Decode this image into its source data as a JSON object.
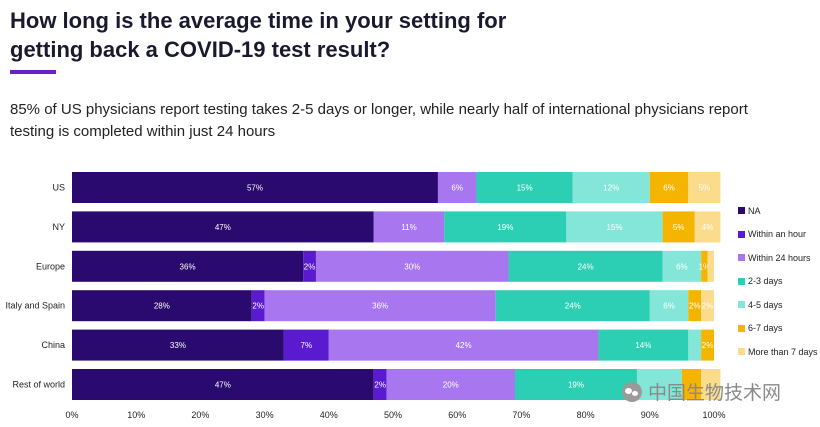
{
  "header": {
    "title": "How long is the average time in your setting for getting back a COVID-19 test result?",
    "subtitle": "85% of US physicians report testing takes 2-5 days or longer, while nearly half of international physicians report testing is completed within just 24 hours"
  },
  "chart_data": {
    "type": "bar",
    "orientation": "horizontal",
    "stacked": true,
    "categories": [
      "US",
      "NY",
      "Europe",
      "Italy and Spain",
      "China",
      "Rest of world"
    ],
    "series": [
      {
        "name": "NA",
        "color": "#2a0a6e",
        "values": [
          57,
          47,
          36,
          28,
          33,
          47
        ]
      },
      {
        "name": "Within an hour",
        "color": "#5a1ad0",
        "values": [
          0,
          0,
          2,
          2,
          7,
          2
        ]
      },
      {
        "name": "Within 24 hours",
        "color": "#a876ee",
        "values": [
          6,
          11,
          30,
          36,
          42,
          20
        ]
      },
      {
        "name": "2-3 days",
        "color": "#2ccfb3",
        "values": [
          15,
          19,
          24,
          24,
          14,
          19
        ]
      },
      {
        "name": "4-5 days",
        "color": "#84e6d8",
        "values": [
          12,
          15,
          6,
          6,
          2,
          7
        ]
      },
      {
        "name": "6-7 days",
        "color": "#f5b400",
        "values": [
          6,
          5,
          1,
          2,
          2,
          3
        ]
      },
      {
        "name": "More than 7 days",
        "color": "#fbdc8c",
        "values": [
          5,
          4,
          1,
          2,
          0,
          3
        ]
      }
    ],
    "data_labels": [
      [
        "57%",
        "",
        "6%",
        "15%",
        "12%",
        "6%",
        "5%"
      ],
      [
        "47%",
        "",
        "11%",
        "19%",
        "15%",
        "5%",
        "4%"
      ],
      [
        "36%",
        "2%",
        "30%",
        "24%",
        "6%",
        "1%",
        ""
      ],
      [
        "28%",
        "2%",
        "36%",
        "24%",
        "6%",
        "2%",
        "2%"
      ],
      [
        "33%",
        "7%",
        "42%",
        "14%",
        "",
        "2%",
        ""
      ],
      [
        "47%",
        "2%",
        "20%",
        "19%",
        "",
        "",
        ""
      ]
    ],
    "x_ticks": [
      "0%",
      "10%",
      "20%",
      "30%",
      "40%",
      "50%",
      "60%",
      "70%",
      "80%",
      "90%",
      "100%"
    ],
    "xlim": [
      0,
      100
    ],
    "legend_position": "right",
    "grid": false
  },
  "legend_labels": [
    "NA",
    "Within an hour",
    "Within 24 hours",
    "2-3 days",
    "4-5 days",
    "6-7 days",
    "More than 7 days"
  ],
  "watermark": {
    "text": "中国生物技术网"
  }
}
